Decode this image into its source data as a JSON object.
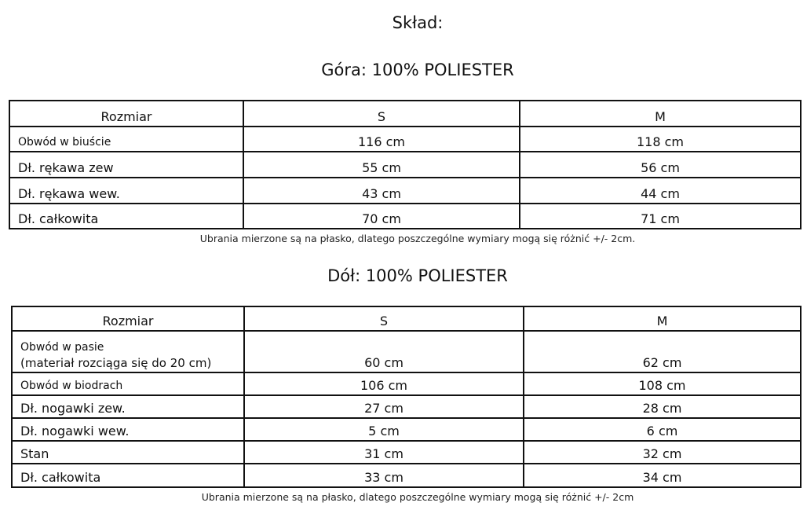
{
  "heading": "Skład:",
  "top": {
    "title": "Góra: 100% POLIESTER",
    "columns": [
      "Rozmiar",
      "S",
      "M"
    ],
    "rows": [
      [
        "Obwód w biuście",
        "116 cm",
        "118 cm"
      ],
      [
        "Dł. rękawa zew",
        "55 cm",
        "56 cm"
      ],
      [
        "Dł. rękawa wew.",
        "43 cm",
        "44 cm"
      ],
      [
        "Dł. całkowita",
        "70 cm",
        "71 cm"
      ]
    ],
    "note": "Ubrania mierzone są na płasko, dlatego poszczególne wymiary mogą się różnić +/- 2cm."
  },
  "bottom": {
    "title": "Dół: 100% POLIESTER",
    "columns": [
      "Rozmiar",
      "S",
      "M"
    ],
    "rows": [
      [
        "Obwód w pasie",
        "60 cm",
        "62 cm"
      ],
      [
        "Obwód w biodrach",
        "106 cm",
        "108 cm"
      ],
      [
        "Dł. nogawki zew.",
        "27 cm",
        "28 cm"
      ],
      [
        "Dł. nogawki wew.",
        "5 cm",
        "6 cm"
      ],
      [
        "Stan",
        "31 cm",
        "32 cm"
      ],
      [
        "Dł. całkowita",
        "33 cm",
        "34 cm"
      ]
    ],
    "waist_subnote": "(materiał rozciąga się do 20 cm)",
    "note": "Ubrania mierzone są na płasko, dlatego poszczególne wymiary mogą się różnić +/- 2cm"
  }
}
